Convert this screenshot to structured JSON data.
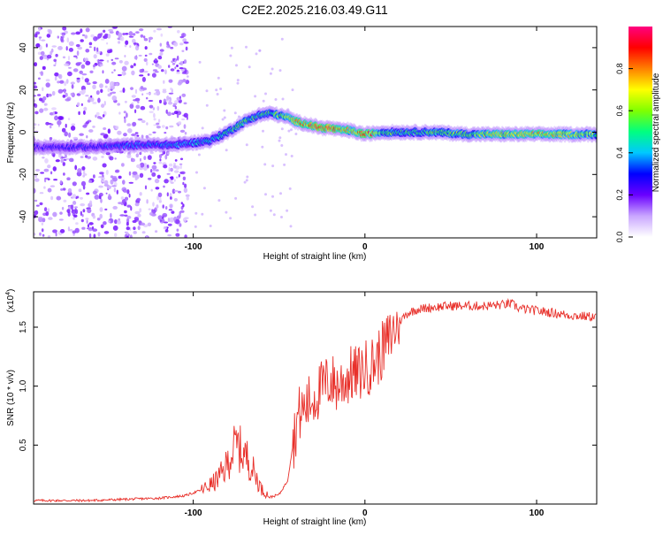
{
  "title": "C2E2.2025.216.03.49.G11",
  "chart_data": [
    {
      "type": "heatmap",
      "xlabel": "Height of straight line (km)",
      "ylabel": "Frequency (Hz)",
      "xlim": [
        -193,
        135
      ],
      "ylim": [
        -50,
        50
      ],
      "x_ticks": [
        -100,
        0,
        100
      ],
      "y_ticks": [
        -40,
        -20,
        0,
        20,
        40
      ],
      "colorbar": {
        "label": "Normalized spectral amplitude",
        "range": [
          0,
          1
        ],
        "ticks": [
          0.0,
          0.2,
          0.4,
          0.6,
          0.8
        ],
        "colors": [
          "#ffffff",
          "#c9a6ff",
          "#6a00ff",
          "#0000ff",
          "#00c8ff",
          "#00ff80",
          "#80ff00",
          "#ffff00",
          "#ff8000",
          "#ff0000",
          "#ff0080"
        ]
      },
      "ridge": {
        "x": [
          -190,
          -160,
          -130,
          -110,
          -100,
          -90,
          -80,
          -70,
          -62,
          -55,
          -50,
          -45,
          -40,
          -35,
          -30,
          -25,
          -20,
          -15,
          -10,
          -5,
          0,
          10,
          20,
          40,
          60,
          80,
          100,
          120,
          135
        ],
        "frequency": [
          -7,
          -7,
          -6,
          -6,
          -5,
          -4,
          0,
          5,
          8,
          9,
          8,
          7,
          5,
          4,
          3,
          2,
          2,
          1,
          1,
          0,
          -1,
          0,
          0,
          0,
          -1,
          -1,
          -1,
          -1,
          -1
        ],
        "amplitude": [
          0.25,
          0.3,
          0.35,
          0.4,
          0.4,
          0.45,
          0.5,
          0.55,
          0.5,
          0.55,
          0.6,
          0.65,
          0.75,
          0.85,
          0.9,
          0.95,
          0.95,
          0.85,
          0.75,
          0.75,
          0.95,
          0.55,
          0.5,
          0.55,
          0.6,
          0.7,
          0.75,
          0.7,
          0.6
        ]
      }
    },
    {
      "type": "line",
      "xlabel": "Height of straight line (km)",
      "ylabel": "SNR (10 * v/v)",
      "multiplier_label": "(x10",
      "multiplier_exp": "4",
      "xlim": [
        -193,
        135
      ],
      "ylim": [
        0,
        1.8
      ],
      "x_ticks": [
        -100,
        0,
        100
      ],
      "y_ticks": [
        0.5,
        1.0,
        1.5
      ],
      "color": "#e8302a",
      "series": [
        {
          "x": [
            -193,
            -180,
            -160,
            -140,
            -120,
            -105,
            -95,
            -88,
            -82,
            -78,
            -75,
            -72,
            -68,
            -64,
            -60,
            -55,
            -50,
            -45,
            -42,
            -39,
            -36,
            -33,
            -30,
            -27,
            -24,
            -20,
            -16,
            -12,
            -8,
            -4,
            0,
            4,
            8,
            12,
            16,
            20,
            25,
            30,
            40,
            50,
            60,
            70,
            80,
            85,
            90,
            100,
            110,
            120,
            130,
            135
          ],
          "values": [
            0.03,
            0.03,
            0.03,
            0.04,
            0.05,
            0.07,
            0.12,
            0.18,
            0.28,
            0.42,
            0.5,
            0.45,
            0.38,
            0.25,
            0.12,
            0.06,
            0.08,
            0.2,
            0.5,
            0.75,
            0.8,
            0.85,
            0.9,
            0.95,
            1.0,
            1.05,
            1.0,
            1.05,
            1.1,
            1.1,
            1.15,
            1.18,
            1.25,
            1.35,
            1.45,
            1.55,
            1.62,
            1.65,
            1.67,
            1.68,
            1.68,
            1.68,
            1.69,
            1.7,
            1.66,
            1.64,
            1.62,
            1.6,
            1.59,
            1.59
          ]
        }
      ]
    }
  ]
}
